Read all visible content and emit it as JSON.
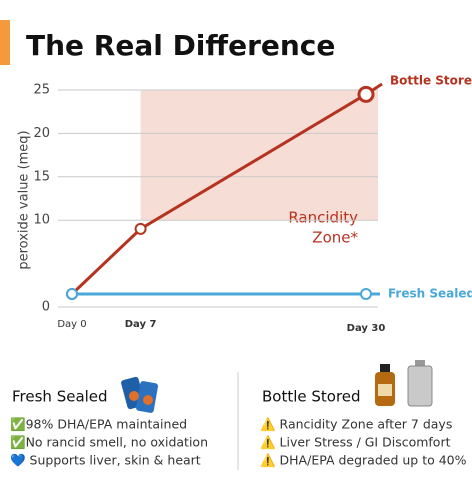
{
  "chart_data": {
    "type": "line",
    "title": "The Real Difference",
    "y_label": "peroxide value (meq)",
    "xlim": [
      0,
      30
    ],
    "xticks": [
      {
        "value": 0,
        "label": "Day 0"
      },
      {
        "value": 7,
        "label": "Day 7"
      },
      {
        "value": 30,
        "label": "Day 30"
      }
    ],
    "ylim": [
      0,
      25
    ],
    "yticks": [
      0,
      10,
      15,
      20,
      25
    ],
    "grid": true,
    "zone": {
      "label": [
        "Rancidity",
        "Zone*"
      ],
      "xlim": [
        7,
        30
      ],
      "ylim": [
        10,
        25
      ],
      "color": "#f6ddd6"
    },
    "series": [
      {
        "name": "Bottle Stored",
        "color": "#b5331f",
        "x": [
          0,
          7,
          30
        ],
        "values": [
          1.5,
          9,
          24.5
        ]
      },
      {
        "name": "Fresh Sealed",
        "color": "#4aa8d8",
        "x": [
          0,
          30
        ],
        "values": [
          1.5,
          1.5
        ]
      }
    ]
  },
  "panels": [
    {
      "title": "Fresh Sealed",
      "items": [
        "✅98% DHA/EPA maintained",
        "✅No rancid smell, no oxidation",
        "💙 Supports liver, skin & heart"
      ]
    },
    {
      "title": "Bottle Stored",
      "items": [
        "⚠️ Rancidity Zone after 7 days",
        "⚠️ Liver Stress / GI Discomfort",
        "⚠️ DHA/EPA degraded up to 40%"
      ]
    }
  ]
}
